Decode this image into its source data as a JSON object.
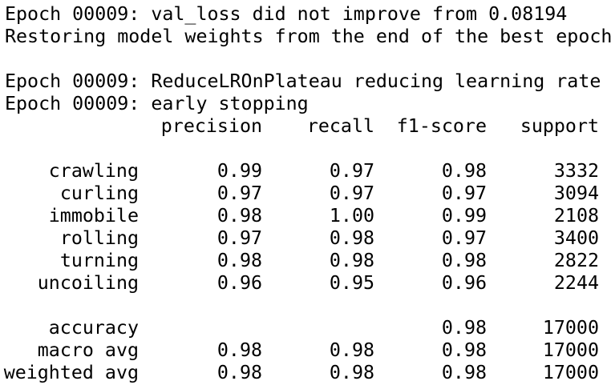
{
  "log_lines": [
    "Epoch 00009: val_loss did not improve from 0.08194",
    "Restoring model weights from the end of the best epoch"
  ],
  "log_lines_2": [
    "Epoch 00009: ReduceLROnPlateau reducing learning rate",
    "Epoch 00009: early stopping"
  ],
  "report": {
    "headers": {
      "precision": "precision",
      "recall": "recall",
      "f1": "f1-score",
      "support": "support"
    },
    "classes": [
      {
        "label": "crawling",
        "precision": "0.99",
        "recall": "0.97",
        "f1": "0.98",
        "support": "3332"
      },
      {
        "label": "curling",
        "precision": "0.97",
        "recall": "0.97",
        "f1": "0.97",
        "support": "3094"
      },
      {
        "label": "immobile",
        "precision": "0.98",
        "recall": "1.00",
        "f1": "0.99",
        "support": "2108"
      },
      {
        "label": "rolling",
        "precision": "0.97",
        "recall": "0.98",
        "f1": "0.97",
        "support": "3400"
      },
      {
        "label": "turning",
        "precision": "0.98",
        "recall": "0.98",
        "f1": "0.98",
        "support": "2822"
      },
      {
        "label": "uncoiling",
        "precision": "0.96",
        "recall": "0.95",
        "f1": "0.96",
        "support": "2244"
      }
    ],
    "summary": [
      {
        "label": "accuracy",
        "precision": "",
        "recall": "",
        "f1": "0.98",
        "support": "17000"
      },
      {
        "label": "macro avg",
        "precision": "0.98",
        "recall": "0.98",
        "f1": "0.98",
        "support": "17000"
      },
      {
        "label": "weighted avg",
        "precision": "0.98",
        "recall": "0.98",
        "f1": "0.98",
        "support": "17000"
      }
    ]
  }
}
